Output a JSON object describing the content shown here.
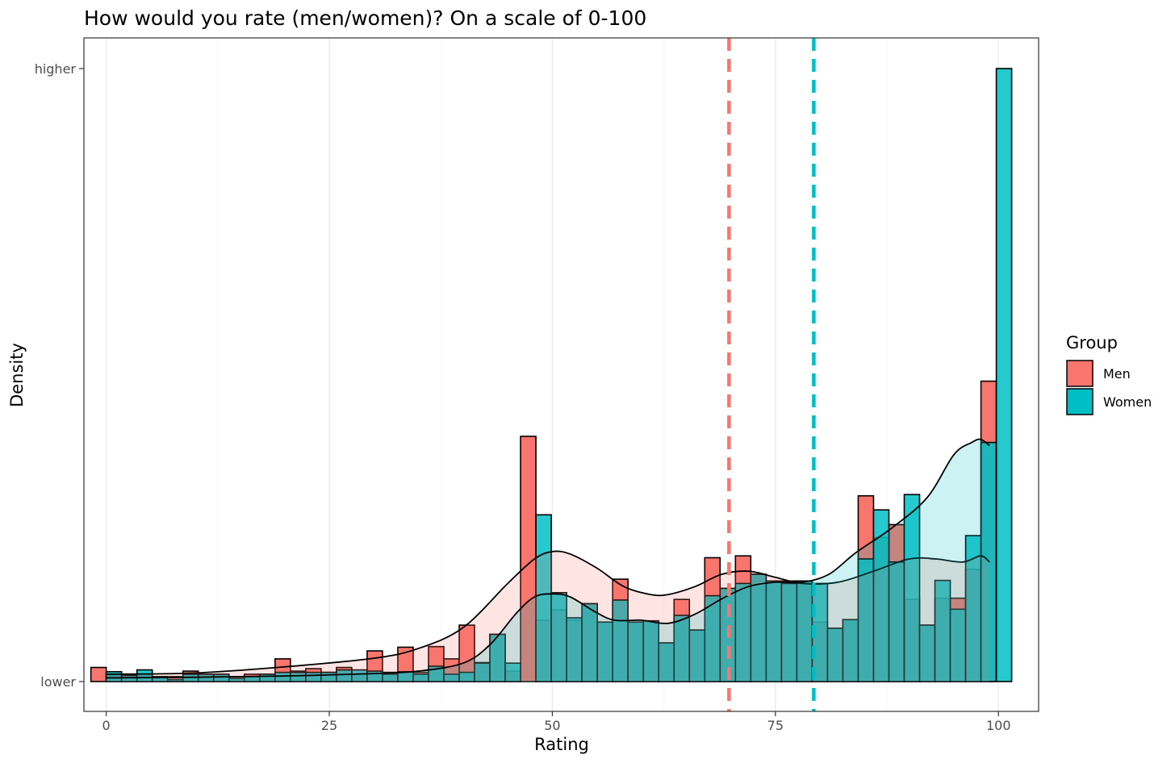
{
  "chart_data": {
    "type": "histogram",
    "title": "How would you rate (men/women)? On a scale of 0-100",
    "xlabel": "Rating",
    "ylabel": "Density",
    "xlim": [
      -2.5,
      104.5
    ],
    "x_ticks": [
      0,
      25,
      50,
      75,
      100
    ],
    "x_tick_labels": [
      "0",
      "25",
      "50",
      "75",
      "100"
    ],
    "y_tick_labels": [
      "lower",
      "higher"
    ],
    "grid": "vertical",
    "legend": {
      "title": "Group",
      "position": "right"
    },
    "bin_width": 1.72,
    "series": [
      {
        "name": "Men",
        "color": "#F8766D",
        "bins": [
          {
            "x": -0.86,
            "y": 0.023
          },
          {
            "x": 0.86,
            "y": 0.01
          },
          {
            "x": 2.58,
            "y": 0.01
          },
          {
            "x": 4.3,
            "y": 0.01
          },
          {
            "x": 6.02,
            "y": 0.008
          },
          {
            "x": 7.74,
            "y": 0.008
          },
          {
            "x": 9.46,
            "y": 0.017
          },
          {
            "x": 11.18,
            "y": 0.012
          },
          {
            "x": 12.9,
            "y": 0.012
          },
          {
            "x": 14.62,
            "y": 0.008
          },
          {
            "x": 16.34,
            "y": 0.012
          },
          {
            "x": 18.06,
            "y": 0.012
          },
          {
            "x": 19.78,
            "y": 0.037
          },
          {
            "x": 21.5,
            "y": 0.017
          },
          {
            "x": 23.22,
            "y": 0.021
          },
          {
            "x": 24.94,
            "y": 0.015
          },
          {
            "x": 26.66,
            "y": 0.023
          },
          {
            "x": 28.38,
            "y": 0.012
          },
          {
            "x": 30.1,
            "y": 0.05
          },
          {
            "x": 31.82,
            "y": 0.015
          },
          {
            "x": 33.54,
            "y": 0.056
          },
          {
            "x": 35.26,
            "y": 0.015
          },
          {
            "x": 36.98,
            "y": 0.057
          },
          {
            "x": 38.7,
            "y": 0.037
          },
          {
            "x": 40.42,
            "y": 0.092
          },
          {
            "x": 42.14,
            "y": 0.031
          },
          {
            "x": 43.86,
            "y": 0.077
          },
          {
            "x": 45.58,
            "y": 0.017
          },
          {
            "x": 47.3,
            "y": 0.4
          },
          {
            "x": 49.02,
            "y": 0.1
          },
          {
            "x": 50.74,
            "y": 0.117
          },
          {
            "x": 52.46,
            "y": 0.1
          },
          {
            "x": 54.18,
            "y": 0.127
          },
          {
            "x": 55.9,
            "y": 0.097
          },
          {
            "x": 57.62,
            "y": 0.167
          },
          {
            "x": 59.34,
            "y": 0.097
          },
          {
            "x": 61.06,
            "y": 0.099
          },
          {
            "x": 62.78,
            "y": 0.063
          },
          {
            "x": 64.5,
            "y": 0.134
          },
          {
            "x": 66.22,
            "y": 0.084
          },
          {
            "x": 67.94,
            "y": 0.202
          },
          {
            "x": 69.66,
            "y": 0.152
          },
          {
            "x": 71.38,
            "y": 0.205
          },
          {
            "x": 73.1,
            "y": 0.175
          },
          {
            "x": 74.82,
            "y": 0.164
          },
          {
            "x": 76.54,
            "y": 0.164
          },
          {
            "x": 78.26,
            "y": 0.164
          },
          {
            "x": 79.98,
            "y": 0.097
          },
          {
            "x": 81.7,
            "y": 0.087
          },
          {
            "x": 83.42,
            "y": 0.101
          },
          {
            "x": 85.14,
            "y": 0.303
          },
          {
            "x": 86.86,
            "y": 0.235
          },
          {
            "x": 88.58,
            "y": 0.256
          },
          {
            "x": 90.3,
            "y": 0.134
          },
          {
            "x": 92.02,
            "y": 0.092
          },
          {
            "x": 93.74,
            "y": 0.136
          },
          {
            "x": 95.46,
            "y": 0.136
          },
          {
            "x": 97.18,
            "y": 0.183
          },
          {
            "x": 98.9,
            "y": 0.49
          },
          {
            "x": 100.62,
            "y": 0.0
          }
        ],
        "density": [
          [
            0,
            0.012
          ],
          [
            10,
            0.014
          ],
          [
            20,
            0.024
          ],
          [
            30,
            0.038
          ],
          [
            35,
            0.054
          ],
          [
            40,
            0.088
          ],
          [
            45,
            0.16
          ],
          [
            48,
            0.2
          ],
          [
            50,
            0.212
          ],
          [
            52,
            0.208
          ],
          [
            55,
            0.185
          ],
          [
            58,
            0.155
          ],
          [
            61,
            0.142
          ],
          [
            63,
            0.142
          ],
          [
            66,
            0.155
          ],
          [
            69,
            0.175
          ],
          [
            72,
            0.18
          ],
          [
            75,
            0.17
          ],
          [
            78,
            0.16
          ],
          [
            82,
            0.162
          ],
          [
            86,
            0.18
          ],
          [
            90,
            0.2
          ],
          [
            93,
            0.2
          ],
          [
            96,
            0.195
          ],
          [
            98,
            0.205
          ],
          [
            99,
            0.195
          ]
        ],
        "mean": 69.8
      },
      {
        "name": "Women",
        "color": "#00BFC4",
        "bins": [
          {
            "x": -0.86,
            "y": 0.0
          },
          {
            "x": 0.86,
            "y": 0.016
          },
          {
            "x": 2.58,
            "y": 0.01
          },
          {
            "x": 4.3,
            "y": 0.019
          },
          {
            "x": 6.02,
            "y": 0.008
          },
          {
            "x": 7.74,
            "y": 0.003
          },
          {
            "x": 9.46,
            "y": 0.012
          },
          {
            "x": 11.18,
            "y": 0.012
          },
          {
            "x": 12.9,
            "y": 0.012
          },
          {
            "x": 14.62,
            "y": 0.005
          },
          {
            "x": 16.34,
            "y": 0.008
          },
          {
            "x": 18.06,
            "y": 0.012
          },
          {
            "x": 19.78,
            "y": 0.015
          },
          {
            "x": 21.5,
            "y": 0.015
          },
          {
            "x": 23.22,
            "y": 0.015
          },
          {
            "x": 24.94,
            "y": 0.015
          },
          {
            "x": 26.66,
            "y": 0.019
          },
          {
            "x": 28.38,
            "y": 0.019
          },
          {
            "x": 30.1,
            "y": 0.017
          },
          {
            "x": 31.82,
            "y": 0.012
          },
          {
            "x": 33.54,
            "y": 0.016
          },
          {
            "x": 35.26,
            "y": 0.012
          },
          {
            "x": 36.98,
            "y": 0.025
          },
          {
            "x": 38.7,
            "y": 0.012
          },
          {
            "x": 40.42,
            "y": 0.015
          },
          {
            "x": 42.14,
            "y": 0.03
          },
          {
            "x": 43.86,
            "y": 0.077
          },
          {
            "x": 45.58,
            "y": 0.03
          },
          {
            "x": 47.3,
            "y": 0.0
          },
          {
            "x": 49.02,
            "y": 0.272
          },
          {
            "x": 50.74,
            "y": 0.145
          },
          {
            "x": 52.46,
            "y": 0.104
          },
          {
            "x": 54.18,
            "y": 0.127
          },
          {
            "x": 55.9,
            "y": 0.097
          },
          {
            "x": 57.62,
            "y": 0.133
          },
          {
            "x": 59.34,
            "y": 0.097
          },
          {
            "x": 61.06,
            "y": 0.099
          },
          {
            "x": 62.78,
            "y": 0.063
          },
          {
            "x": 64.5,
            "y": 0.108
          },
          {
            "x": 66.22,
            "y": 0.084
          },
          {
            "x": 67.94,
            "y": 0.14
          },
          {
            "x": 69.66,
            "y": 0.152
          },
          {
            "x": 71.38,
            "y": 0.16
          },
          {
            "x": 73.1,
            "y": 0.175
          },
          {
            "x": 74.82,
            "y": 0.164
          },
          {
            "x": 76.54,
            "y": 0.16
          },
          {
            "x": 78.26,
            "y": 0.164
          },
          {
            "x": 79.98,
            "y": 0.16
          },
          {
            "x": 81.7,
            "y": 0.087
          },
          {
            "x": 83.42,
            "y": 0.101
          },
          {
            "x": 85.14,
            "y": 0.2
          },
          {
            "x": 86.86,
            "y": 0.28
          },
          {
            "x": 88.58,
            "y": 0.195
          },
          {
            "x": 90.3,
            "y": 0.305
          },
          {
            "x": 92.02,
            "y": 0.092
          },
          {
            "x": 93.74,
            "y": 0.165
          },
          {
            "x": 95.46,
            "y": 0.118
          },
          {
            "x": 97.18,
            "y": 0.238
          },
          {
            "x": 98.9,
            "y": 0.39
          },
          {
            "x": 100.62,
            "y": 1.0
          }
        ],
        "density": [
          [
            0,
            0.006
          ],
          [
            10,
            0.007
          ],
          [
            20,
            0.009
          ],
          [
            30,
            0.013
          ],
          [
            35,
            0.017
          ],
          [
            40,
            0.03
          ],
          [
            43,
            0.06
          ],
          [
            46,
            0.112
          ],
          [
            48,
            0.138
          ],
          [
            50,
            0.143
          ],
          [
            52,
            0.138
          ],
          [
            55,
            0.112
          ],
          [
            57,
            0.1
          ],
          [
            60,
            0.1
          ],
          [
            63,
            0.095
          ],
          [
            66,
            0.11
          ],
          [
            69,
            0.135
          ],
          [
            72,
            0.155
          ],
          [
            75,
            0.162
          ],
          [
            78,
            0.162
          ],
          [
            81,
            0.175
          ],
          [
            84,
            0.21
          ],
          [
            88,
            0.25
          ],
          [
            92,
            0.3
          ],
          [
            95,
            0.37
          ],
          [
            97,
            0.39
          ],
          [
            98,
            0.395
          ],
          [
            99,
            0.385
          ]
        ],
        "mean": 79.3
      }
    ]
  }
}
